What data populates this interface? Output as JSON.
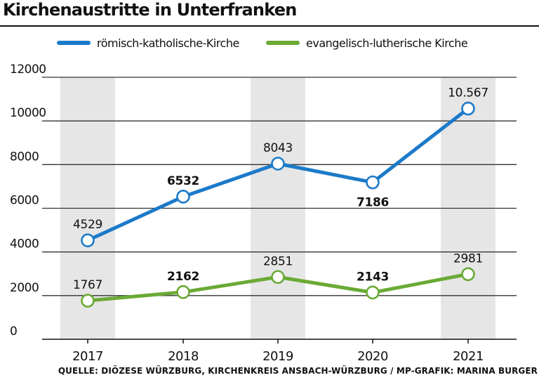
{
  "chart_data": {
    "type": "line",
    "title": "Kirchenaustritte in Unterfranken",
    "source": "QUELLE: DIÖZESE WÜRZBURG, KIRCHENKREIS ANSBACH-WÜRZBURG / MP-GRAFIK: MARINA BURGER",
    "categories": [
      "2017",
      "2018",
      "2019",
      "2020",
      "2021"
    ],
    "ylim": [
      0,
      12000
    ],
    "yticks": [
      0,
      2000,
      4000,
      6000,
      8000,
      10000,
      12000
    ],
    "ytick_labels": [
      "0",
      "2000",
      "4000",
      "6000",
      "8000",
      "10000",
      "12000"
    ],
    "grid": true,
    "legend": "top",
    "series": [
      {
        "name": "römisch-katholische-Kirche",
        "color": "#1c7ac9",
        "values": [
          4529,
          6532,
          8043,
          7186,
          10567
        ],
        "labels": [
          "4529",
          "6532",
          "8043",
          "7186",
          "10.567"
        ],
        "label_bold": [
          false,
          true,
          false,
          true,
          false
        ],
        "label_pos": [
          "above",
          "above",
          "above",
          "below",
          "above"
        ]
      },
      {
        "name": "evangelisch-lutherische Kirche",
        "color": "#6aaa35",
        "values": [
          1767,
          2162,
          2851,
          2143,
          2981
        ],
        "labels": [
          "1767",
          "2162",
          "2851",
          "2143",
          "2981"
        ],
        "label_bold": [
          false,
          true,
          false,
          true,
          false
        ],
        "label_pos": [
          "above",
          "above",
          "above",
          "above",
          "above"
        ]
      }
    ]
  }
}
